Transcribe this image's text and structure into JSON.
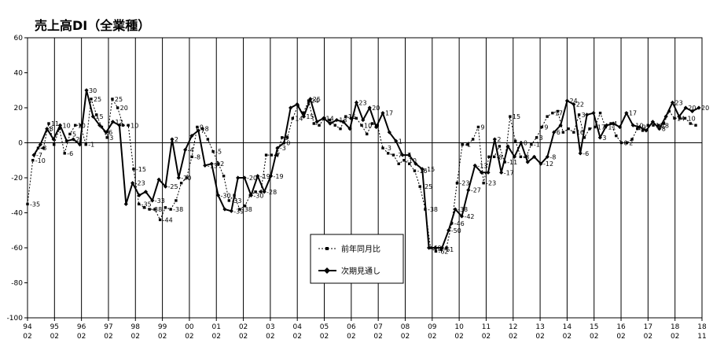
{
  "chart_data": {
    "type": "line",
    "title": "売上高DI（全業種）",
    "ylim": [
      -100,
      60
    ],
    "yticks": [
      60,
      40,
      20,
      0,
      -20,
      -40,
      -60,
      -80,
      -100
    ],
    "grid": "vertical year lines",
    "legend_position": "center-bottom",
    "x_tick_labels": [
      {
        "year": "94",
        "month": "02"
      },
      {
        "year": "95",
        "month": "02"
      },
      {
        "year": "96",
        "month": "02"
      },
      {
        "year": "97",
        "month": "02"
      },
      {
        "year": "98",
        "month": "02"
      },
      {
        "year": "99",
        "month": "02"
      },
      {
        "year": "00",
        "month": "02"
      },
      {
        "year": "01",
        "month": "02"
      },
      {
        "year": "02",
        "month": "02"
      },
      {
        "year": "03",
        "month": "02"
      },
      {
        "year": "04",
        "month": "02"
      },
      {
        "year": "05",
        "month": "02"
      },
      {
        "year": "06",
        "month": "02"
      },
      {
        "year": "07",
        "month": "02"
      },
      {
        "year": "08",
        "month": "02"
      },
      {
        "year": "09",
        "month": "02"
      },
      {
        "year": "10",
        "month": "02"
      },
      {
        "year": "11",
        "month": "02"
      },
      {
        "year": "12",
        "month": "02"
      },
      {
        "year": "13",
        "month": "02"
      },
      {
        "year": "14",
        "month": "02"
      },
      {
        "year": "15",
        "month": "02"
      },
      {
        "year": "16",
        "month": "02"
      },
      {
        "year": "17",
        "month": "02"
      },
      {
        "year": "18",
        "month": "02"
      },
      {
        "year": "18",
        "month": "11"
      }
    ],
    "series": [
      {
        "name": "前年同月比",
        "style": "dashed-square",
        "values": [
          -35,
          -10,
          -3,
          -3,
          11,
          -1,
          8,
          -6,
          5,
          10,
          10,
          -1,
          25,
          16,
          9,
          3,
          25,
          20,
          10,
          10,
          -15,
          -35,
          -37,
          -38,
          -38,
          -44,
          -37,
          -38,
          -33,
          -23,
          -20,
          -8,
          9,
          8,
          2,
          -5,
          -12,
          -19,
          -33,
          -30,
          -38,
          -36,
          -30,
          -28,
          -28,
          -7,
          -7,
          -7,
          3,
          3,
          14,
          21,
          17,
          24,
          11,
          10,
          14,
          13,
          10,
          8,
          15,
          14,
          14,
          10,
          5,
          11,
          10,
          -3,
          -6,
          -7,
          -12,
          -10,
          -12,
          -16,
          -25,
          -38,
          -60,
          -62,
          -61,
          -60,
          -46,
          -23,
          -1,
          -1,
          2,
          9,
          -23,
          -8,
          -8,
          -2,
          -11,
          15,
          1,
          -8,
          -8,
          -1,
          3,
          9,
          15,
          17,
          18,
          6,
          8,
          6,
          16,
          3,
          8,
          9,
          17,
          9,
          11,
          4,
          0,
          0,
          2,
          8,
          7,
          10,
          10,
          10,
          11,
          18,
          14,
          14,
          14,
          11,
          10
        ]
      },
      {
        "name": "次期見通し",
        "style": "solid-diamond",
        "values": [
          -7,
          -1,
          8,
          2,
          10,
          1,
          2,
          -1,
          30,
          15,
          10,
          6,
          12,
          10,
          -35,
          -23,
          -30,
          -28,
          -33,
          -21,
          -25,
          2,
          -20,
          -4,
          4,
          7,
          -13,
          -12,
          -30,
          -38,
          -39,
          -20,
          -20,
          -30,
          -19,
          -28,
          -19,
          -3,
          0,
          20,
          22,
          15,
          25,
          12,
          14,
          11,
          13,
          12,
          8,
          23,
          13,
          20,
          9,
          17,
          6,
          1,
          -7,
          -7,
          -12,
          -15,
          -60,
          -60,
          -60,
          -50,
          -38,
          -42,
          -27,
          -13,
          -17,
          -17,
          2,
          -17,
          -2,
          -8,
          0,
          -11,
          -8,
          -12,
          -8,
          6,
          10,
          24,
          22,
          -6,
          16,
          17,
          3,
          10,
          11,
          9,
          17,
          10,
          9,
          7,
          12,
          8,
          15,
          23,
          15,
          20,
          18,
          20
        ]
      }
    ],
    "point_labels": {
      "前年同月比": [
        {
          "i": 0,
          "text": "-35"
        },
        {
          "i": 1,
          "text": "-10"
        },
        {
          "i": 2,
          "text": "-3"
        },
        {
          "i": 4,
          "text": "11"
        },
        {
          "i": 7,
          "text": "-6"
        },
        {
          "i": 8,
          "text": "5"
        },
        {
          "i": 9,
          "text": "10"
        },
        {
          "i": 11,
          "text": "-1"
        },
        {
          "i": 12,
          "text": "25"
        },
        {
          "i": 15,
          "text": "3"
        },
        {
          "i": 16,
          "text": "25"
        },
        {
          "i": 17,
          "text": "20"
        },
        {
          "i": 19,
          "text": "10"
        },
        {
          "i": 20,
          "text": "-15"
        },
        {
          "i": 21,
          "text": "-35"
        },
        {
          "i": 23,
          "text": "-38"
        },
        {
          "i": 25,
          "text": "-44"
        },
        {
          "i": 27,
          "text": "-38"
        },
        {
          "i": 31,
          "text": "-8"
        },
        {
          "i": 32,
          "text": "9"
        },
        {
          "i": 33,
          "text": "8"
        },
        {
          "i": 35,
          "text": "-5"
        },
        {
          "i": 38,
          "text": "-33"
        },
        {
          "i": 40,
          "text": "-38"
        },
        {
          "i": 46,
          "text": "-7"
        },
        {
          "i": 48,
          "text": "3"
        },
        {
          "i": 50,
          "text": "14"
        },
        {
          "i": 53,
          "text": "24"
        },
        {
          "i": 60,
          "text": "15"
        },
        {
          "i": 63,
          "text": "10"
        },
        {
          "i": 67,
          "text": "-3"
        },
        {
          "i": 69,
          "text": "-7"
        },
        {
          "i": 71,
          "text": "-10"
        },
        {
          "i": 73,
          "text": "-16"
        },
        {
          "i": 74,
          "text": "-25"
        },
        {
          "i": 75,
          "text": "-38"
        },
        {
          "i": 77,
          "text": "-62"
        },
        {
          "i": 78,
          "text": "-61"
        },
        {
          "i": 80,
          "text": "-46"
        },
        {
          "i": 81,
          "text": "-23"
        },
        {
          "i": 82,
          "text": "-1"
        },
        {
          "i": 85,
          "text": "9"
        },
        {
          "i": 86,
          "text": "-23"
        },
        {
          "i": 88,
          "text": "-8"
        },
        {
          "i": 90,
          "text": "-11"
        },
        {
          "i": 91,
          "text": "15"
        },
        {
          "i": 93,
          "text": "-8"
        },
        {
          "i": 95,
          "text": "-1"
        },
        {
          "i": 96,
          "text": "3"
        },
        {
          "i": 97,
          "text": "9"
        },
        {
          "i": 99,
          "text": "17"
        },
        {
          "i": 103,
          "text": "16"
        },
        {
          "i": 104,
          "text": "3"
        },
        {
          "i": 107,
          "text": "17"
        },
        {
          "i": 109,
          "text": "11"
        },
        {
          "i": 110,
          "text": "4"
        },
        {
          "i": 112,
          "text": "0"
        },
        {
          "i": 113,
          "text": "2"
        },
        {
          "i": 118,
          "text": "11"
        },
        {
          "i": 119,
          "text": "18"
        },
        {
          "i": 122,
          "text": "14"
        },
        {
          "i": 124,
          "text": "10"
        }
      ],
      "次期見通し": [
        {
          "i": 0,
          "text": "-7"
        },
        {
          "i": 2,
          "text": "8"
        },
        {
          "i": 4,
          "text": "10"
        },
        {
          "i": 6,
          "text": "2"
        },
        {
          "i": 8,
          "text": "30"
        },
        {
          "i": 9,
          "text": "15"
        },
        {
          "i": 11,
          "text": "6"
        },
        {
          "i": 12,
          "text": "12"
        },
        {
          "i": 15,
          "text": "-23"
        },
        {
          "i": 18,
          "text": "-33"
        },
        {
          "i": 20,
          "text": "-25"
        },
        {
          "i": 21,
          "text": "2"
        },
        {
          "i": 22,
          "text": "-20"
        },
        {
          "i": 23,
          "text": "-4"
        },
        {
          "i": 25,
          "text": "7"
        },
        {
          "i": 26,
          "text": "-13"
        },
        {
          "i": 27,
          "text": "-12"
        },
        {
          "i": 28,
          "text": "-30"
        },
        {
          "i": 30,
          "text": "-39"
        },
        {
          "i": 32,
          "text": "-20"
        },
        {
          "i": 33,
          "text": "-30"
        },
        {
          "i": 34,
          "text": "-19"
        },
        {
          "i": 35,
          "text": "-28"
        },
        {
          "i": 36,
          "text": "-19"
        },
        {
          "i": 37,
          "text": "-3"
        },
        {
          "i": 38,
          "text": "0"
        },
        {
          "i": 41,
          "text": "15"
        },
        {
          "i": 42,
          "text": "25"
        },
        {
          "i": 44,
          "text": "14"
        },
        {
          "i": 46,
          "text": "13"
        },
        {
          "i": 49,
          "text": "23"
        },
        {
          "i": 51,
          "text": "20"
        },
        {
          "i": 53,
          "text": "17"
        },
        {
          "i": 55,
          "text": "1"
        },
        {
          "i": 56,
          "text": "-7"
        },
        {
          "i": 59,
          "text": "-15"
        },
        {
          "i": 60,
          "text": "-60"
        },
        {
          "i": 63,
          "text": "-50"
        },
        {
          "i": 64,
          "text": "-38"
        },
        {
          "i": 65,
          "text": "-42"
        },
        {
          "i": 66,
          "text": "-27"
        },
        {
          "i": 67,
          "text": "-13"
        },
        {
          "i": 70,
          "text": "2"
        },
        {
          "i": 71,
          "text": "-17"
        },
        {
          "i": 74,
          "text": "0"
        },
        {
          "i": 77,
          "text": "-12"
        },
        {
          "i": 78,
          "text": "-8"
        },
        {
          "i": 79,
          "text": "6"
        },
        {
          "i": 81,
          "text": "24"
        },
        {
          "i": 82,
          "text": "22"
        },
        {
          "i": 83,
          "text": "-6"
        },
        {
          "i": 86,
          "text": "3"
        },
        {
          "i": 90,
          "text": "17"
        },
        {
          "i": 91,
          "text": "10"
        },
        {
          "i": 92,
          "text": "9"
        },
        {
          "i": 95,
          "text": "8"
        },
        {
          "i": 97,
          "text": "23"
        },
        {
          "i": 99,
          "text": "20"
        },
        {
          "i": 101,
          "text": "20"
        }
      ]
    }
  }
}
